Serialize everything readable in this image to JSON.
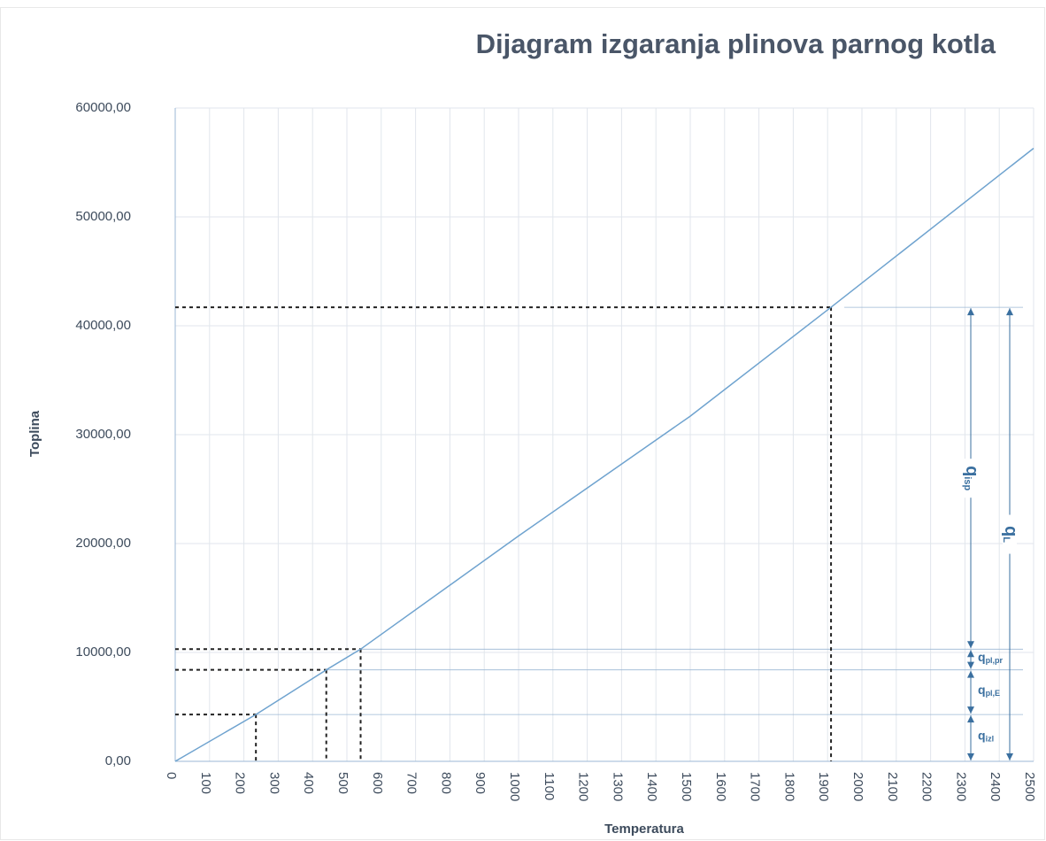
{
  "chart_data": {
    "type": "line",
    "title": "Dijagram izgaranja plinova parnog kotla",
    "x_label": "Temperatura",
    "y_label": "Toplina",
    "x": [
      0,
      235,
      440,
      540,
      1000,
      1500,
      1910,
      2500
    ],
    "values": [
      0,
      4300,
      8400,
      10300,
      20700,
      31700,
      41700,
      56300
    ],
    "color": "#6fa3cf",
    "xlim": [
      0,
      2500
    ],
    "xticks": [
      0,
      100,
      200,
      300,
      400,
      500,
      600,
      700,
      800,
      900,
      1000,
      1100,
      1200,
      1300,
      1400,
      1500,
      1600,
      1700,
      1800,
      1900,
      2000,
      2100,
      2200,
      2300,
      2400,
      2500
    ],
    "ylim": [
      0,
      60000
    ],
    "yticks": [
      {
        "value": 0,
        "label": "0,00"
      },
      {
        "value": 10000,
        "label": "10000,00"
      },
      {
        "value": 20000,
        "label": "20000,00"
      },
      {
        "value": 30000,
        "label": "30000,00"
      },
      {
        "value": 40000,
        "label": "40000,00"
      },
      {
        "value": 50000,
        "label": "50000,00"
      },
      {
        "value": 60000,
        "label": "60000,00"
      }
    ],
    "grid": true,
    "reference_points": [
      {
        "x": 235,
        "y": 4300
      },
      {
        "x": 440,
        "y": 8400
      },
      {
        "x": 540,
        "y": 10300
      },
      {
        "x": 1910,
        "y": 41700
      }
    ],
    "annotations": [
      {
        "main": "q",
        "sub": "izl"
      },
      {
        "main": "q",
        "sub": "pl,E"
      },
      {
        "main": "q",
        "sub": "pl,pr"
      },
      {
        "main": "q",
        "sub": "isp"
      },
      {
        "main": "q",
        "sub": "L"
      }
    ]
  }
}
